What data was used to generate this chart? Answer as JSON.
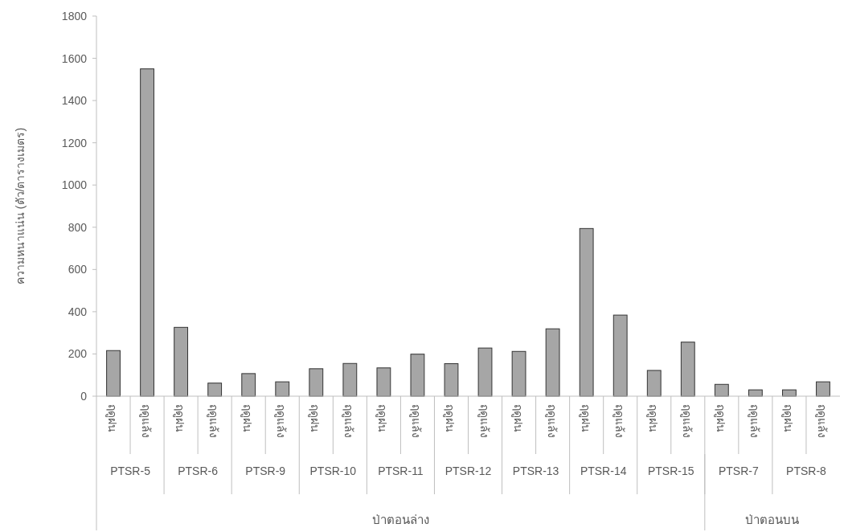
{
  "chart_data": {
    "type": "bar",
    "ylabel": "ความหนาแน่น (ตัว/ตารางเมตร)",
    "categories": [
      "ฤดูฝน",
      "ฤดูแล้ง",
      "ฤดูฝน",
      "ฤดูแล้ง",
      "ฤดูฝน",
      "ฤดูแล้ง",
      "ฤดูฝน",
      "ฤดูแล้ง",
      "ฤดูฝน",
      "ฤดูแล้ง",
      "ฤดูฝน",
      "ฤดูแล้ง",
      "ฤดูฝน",
      "ฤดูแล้ง",
      "ฤดูฝน",
      "ฤดูแล้ง",
      "ฤดูฝน",
      "ฤดูแล้ง",
      "ฤดูฝน",
      "ฤดูแล้ง",
      "ฤดูฝน",
      "ฤดูแล้ง"
    ],
    "values": [
      216,
      1550,
      326,
      62,
      107,
      68,
      130,
      155,
      134,
      199,
      154,
      228,
      212,
      319,
      794,
      384,
      122,
      256,
      56,
      30,
      30,
      68
    ],
    "color": "#a6a6a6",
    "ylim": [
      0,
      1800
    ],
    "yticks": [
      0,
      200,
      400,
      600,
      800,
      1000,
      1200,
      1400,
      1600,
      1800
    ],
    "annotations": [
      "PTSR-5",
      "PTSR-6",
      "PTSR-9",
      "PTSR-10",
      "PTSR-11",
      "PTSR-12",
      "PTSR-13",
      "PTSR-14",
      "PTSR-15",
      "PTSR-7",
      "PTSR-8",
      "ป่าตอนล่าง",
      "ป่าตอนบน"
    ]
  }
}
